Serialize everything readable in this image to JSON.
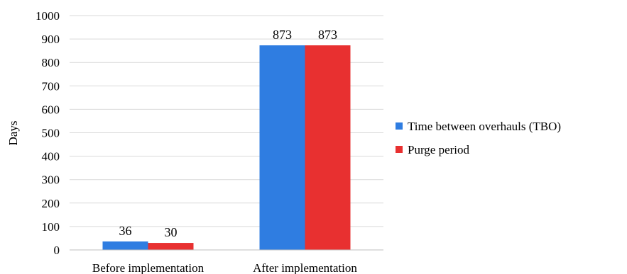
{
  "chart_data": {
    "type": "bar",
    "categories": [
      "Before implementation",
      "After implementation"
    ],
    "series": [
      {
        "name": "Time between overhauls (TBO)",
        "values": [
          36,
          873
        ],
        "color": "#2f7de1"
      },
      {
        "name": "Purge period",
        "values": [
          30,
          873
        ],
        "color": "#e83030"
      }
    ],
    "ylabel": "Days",
    "ylim": [
      0,
      1000
    ],
    "yticks": [
      "0",
      "100",
      "200",
      "300",
      "400",
      "500",
      "600",
      "700",
      "800",
      "900",
      "1000"
    ],
    "grid": true,
    "legend": "right",
    "data_labels": [
      [
        "36",
        "873"
      ],
      [
        "30",
        "873"
      ]
    ]
  }
}
